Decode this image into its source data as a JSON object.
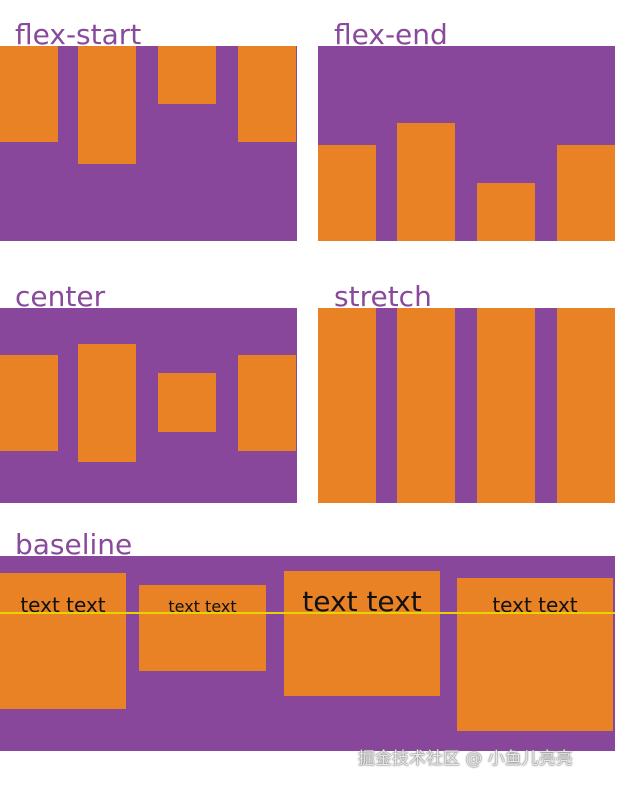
{
  "panels": [
    {
      "label": "flex-start"
    },
    {
      "label": "flex-end"
    },
    {
      "label": "center"
    },
    {
      "label": "stretch"
    },
    {
      "label": "baseline",
      "texts": [
        "text text",
        "text text",
        "text text",
        "text text"
      ]
    }
  ],
  "watermark": "掘金技术社区 @ 小鱼儿亮亮"
}
